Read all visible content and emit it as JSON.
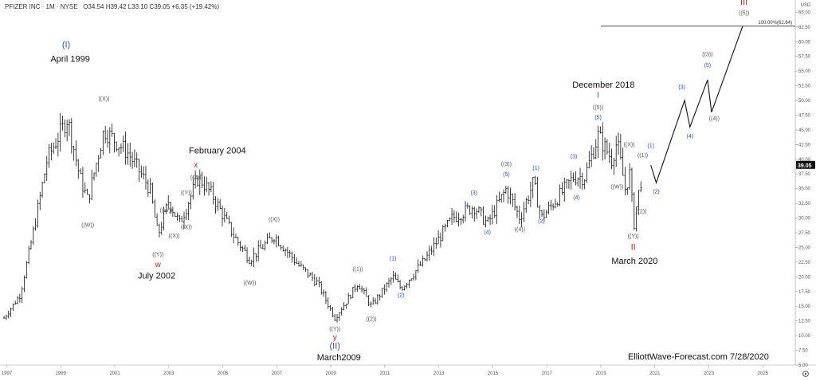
{
  "header": {
    "symbol": "PFIZER INC · 1M · NYSE",
    "ohlc": "O34.54 H39.42 L33.10 C39.05 +6.35 (+19.42%)"
  },
  "axis": {
    "currency": "USD",
    "last_price": "39.05",
    "target_label": "100.00%(62.64)"
  },
  "watermark": "ElliottWave-Forecast.com 7/28/2020",
  "settings_icon": "gear-icon",
  "colors": {
    "blue": "#2a4bd6",
    "red": "#d62020",
    "gray": "#555555",
    "line": "#111111",
    "price_tag": "#111111"
  },
  "chart_data": {
    "type": "bar",
    "xlim": [
      1996.75,
      2026.2
    ],
    "ylim": [
      5,
      66
    ],
    "yticks": [
      5,
      7.5,
      10,
      12.5,
      15,
      17.5,
      20,
      22.5,
      25,
      27.5,
      30,
      32.5,
      35,
      37.5,
      40,
      42.5,
      45,
      47.5,
      50,
      52.5,
      55,
      57.5,
      60,
      62.5,
      65
    ],
    "xticks": [
      1997,
      1999,
      2001,
      2003,
      2005,
      2007,
      2009,
      2011,
      2013,
      2015,
      2017,
      2019,
      2021,
      2023,
      2025
    ],
    "price_anchors": [
      [
        1996.9,
        13
      ],
      [
        1997.5,
        17
      ],
      [
        1998.0,
        28
      ],
      [
        1998.5,
        40
      ],
      [
        1999.25,
        47
      ],
      [
        1999.7,
        37
      ],
      [
        2000.0,
        33
      ],
      [
        2000.6,
        45
      ],
      [
        2001.5,
        41
      ],
      [
        2002.3,
        35
      ],
      [
        2002.6,
        27
      ],
      [
        2003.0,
        33
      ],
      [
        2003.4,
        29
      ],
      [
        2004.1,
        37
      ],
      [
        2004.6,
        34
      ],
      [
        2005.4,
        27
      ],
      [
        2006.0,
        23
      ],
      [
        2006.9,
        27
      ],
      [
        2007.8,
        22
      ],
      [
        2008.5,
        19
      ],
      [
        2009.15,
        13
      ],
      [
        2009.6,
        16
      ],
      [
        2010.0,
        19
      ],
      [
        2010.5,
        15
      ],
      [
        2011.3,
        20
      ],
      [
        2011.6,
        18
      ],
      [
        2012.5,
        23
      ],
      [
        2013.5,
        30
      ],
      [
        2014.3,
        32
      ],
      [
        2014.8,
        29
      ],
      [
        2015.5,
        35
      ],
      [
        2016.0,
        30
      ],
      [
        2016.5,
        36
      ],
      [
        2016.8,
        30
      ],
      [
        2017.5,
        34
      ],
      [
        2018.0,
        37
      ],
      [
        2018.4,
        37
      ],
      [
        2018.9,
        44
      ],
      [
        2019.4,
        40
      ],
      [
        2019.6,
        43
      ],
      [
        2019.9,
        35
      ],
      [
        2020.1,
        38
      ],
      [
        2020.2,
        28
      ],
      [
        2020.35,
        33
      ],
      [
        2020.55,
        38
      ]
    ],
    "forecast_path": [
      [
        2020.85,
        39
      ],
      [
        2021.05,
        36
      ],
      [
        2022.1,
        50
      ],
      [
        2022.3,
        45.5
      ],
      [
        2022.95,
        53.5
      ],
      [
        2023.1,
        48
      ],
      [
        2024.25,
        62.6
      ]
    ],
    "target_line": {
      "x1": 2019.0,
      "x2": 2026.2,
      "y": 62.64
    },
    "annotations": [
      {
        "text": "(I)",
        "x": 1999.2,
        "y": 59,
        "color": "blue"
      },
      {
        "text": "April 1999",
        "x": 1999.35,
        "y": 56.6,
        "color": "dark"
      },
      {
        "text": "((X))",
        "x": 2000.6,
        "y": 50,
        "color": "gray"
      },
      {
        "text": "((W))",
        "x": 2000.0,
        "y": 28.5,
        "color": "gray"
      },
      {
        "text": "February 2004",
        "x": 2004.8,
        "y": 41,
        "color": "dark"
      },
      {
        "text": "x",
        "x": 2004.0,
        "y": 38.6,
        "color": "red"
      },
      {
        "text": "((Z))",
        "x": 2004.0,
        "y": 36.6,
        "color": "gray"
      },
      {
        "text": "((Y))",
        "x": 2003.65,
        "y": 34,
        "color": "gray"
      },
      {
        "text": "((W))",
        "x": 2002.9,
        "y": 31,
        "color": "gray"
      },
      {
        "text": "((X))",
        "x": 2003.65,
        "y": 28.2,
        "color": "gray"
      },
      {
        "text": "((X))",
        "x": 2003.2,
        "y": 26.7,
        "color": "gray"
      },
      {
        "text": "((Y))",
        "x": 2002.6,
        "y": 23.5,
        "color": "gray"
      },
      {
        "text": "w",
        "x": 2002.6,
        "y": 21.7,
        "color": "red"
      },
      {
        "text": "July 2002",
        "x": 2002.55,
        "y": 19.7,
        "color": "dark"
      },
      {
        "text": "((X))",
        "x": 2006.9,
        "y": 29.5,
        "color": "gray"
      },
      {
        "text": "((W))",
        "x": 2006.0,
        "y": 18.7,
        "color": "gray"
      },
      {
        "text": "((1))",
        "x": 2010.0,
        "y": 21,
        "color": "gray"
      },
      {
        "text": "((2))",
        "x": 2010.5,
        "y": 12.5,
        "color": "gray"
      },
      {
        "text": "((Y))",
        "x": 2009.15,
        "y": 10.8,
        "color": "gray"
      },
      {
        "text": "y",
        "x": 2009.15,
        "y": 9.3,
        "color": "red"
      },
      {
        "text": "(II)",
        "x": 2009.15,
        "y": 7.8,
        "color": "blue"
      },
      {
        "text": "March2009",
        "x": 2009.3,
        "y": 5.8,
        "color": "dark"
      },
      {
        "text": "(1)",
        "x": 2011.3,
        "y": 22.8,
        "color": "blue"
      },
      {
        "text": "(2)",
        "x": 2011.6,
        "y": 16.6,
        "color": "blue"
      },
      {
        "text": "(3)",
        "x": 2014.3,
        "y": 34,
        "color": "blue"
      },
      {
        "text": "(4)",
        "x": 2014.8,
        "y": 27.3,
        "color": "blue"
      },
      {
        "text": "((3))",
        "x": 2015.5,
        "y": 38.9,
        "color": "gray"
      },
      {
        "text": "(5)",
        "x": 2015.5,
        "y": 37.1,
        "color": "blue"
      },
      {
        "text": "((4))",
        "x": 2016.0,
        "y": 27.8,
        "color": "gray"
      },
      {
        "text": "(1)",
        "x": 2016.6,
        "y": 38.2,
        "color": "blue"
      },
      {
        "text": "(2)",
        "x": 2016.8,
        "y": 29.2,
        "color": "blue"
      },
      {
        "text": "(3)",
        "x": 2018.0,
        "y": 40.2,
        "color": "blue"
      },
      {
        "text": "(4)",
        "x": 2018.1,
        "y": 33.2,
        "color": "blue"
      },
      {
        "text": "December 2018",
        "x": 2019.1,
        "y": 52.2,
        "color": "dark"
      },
      {
        "text": "I",
        "x": 2018.9,
        "y": 50.5,
        "color": "red"
      },
      {
        "text": "((5))",
        "x": 2018.9,
        "y": 48.5,
        "color": "gray"
      },
      {
        "text": "(5)",
        "x": 2018.9,
        "y": 46.8,
        "color": "blue"
      },
      {
        "text": "((X))",
        "x": 2020.05,
        "y": 42.2,
        "color": "gray"
      },
      {
        "text": "((1))",
        "x": 2020.55,
        "y": 40.4,
        "color": "gray"
      },
      {
        "text": "(1)",
        "x": 2020.85,
        "y": 42,
        "color": "blue"
      },
      {
        "text": "((W))",
        "x": 2019.6,
        "y": 35,
        "color": "gray"
      },
      {
        "text": "(2)",
        "x": 2021.05,
        "y": 34.2,
        "color": "blue"
      },
      {
        "text": "((2))",
        "x": 2020.5,
        "y": 30.8,
        "color": "gray"
      },
      {
        "text": "((Y))",
        "x": 2020.2,
        "y": 26.6,
        "color": "gray"
      },
      {
        "text": "II",
        "x": 2020.2,
        "y": 24.6,
        "color": "red"
      },
      {
        "text": "March 2020",
        "x": 2020.25,
        "y": 22.2,
        "color": "dark"
      },
      {
        "text": "(3)",
        "x": 2022.0,
        "y": 52,
        "color": "blue"
      },
      {
        "text": "(4)",
        "x": 2022.3,
        "y": 43.6,
        "color": "blue"
      },
      {
        "text": "((3))",
        "x": 2022.95,
        "y": 57.5,
        "color": "gray"
      },
      {
        "text": "(5)",
        "x": 2022.95,
        "y": 55.7,
        "color": "blue"
      },
      {
        "text": "((4))",
        "x": 2023.2,
        "y": 46.6,
        "color": "gray"
      },
      {
        "text": "III",
        "x": 2024.3,
        "y": 66.3,
        "color": "red"
      },
      {
        "text": "((5))",
        "x": 2024.3,
        "y": 64.6,
        "color": "gray"
      }
    ]
  }
}
